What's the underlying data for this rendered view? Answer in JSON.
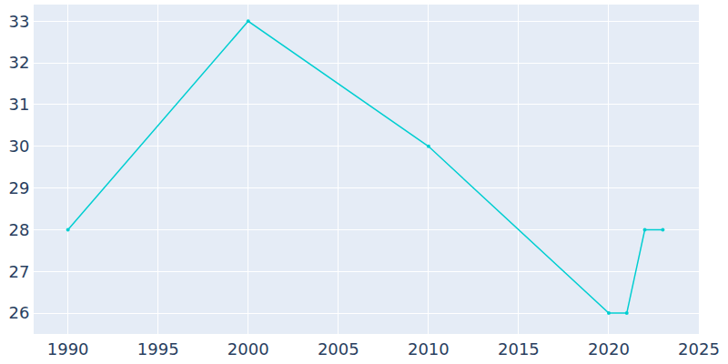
{
  "chart_data": {
    "type": "line",
    "x": [
      1990,
      2000,
      2010,
      2020,
      2021,
      2022,
      2023
    ],
    "values": [
      28,
      33,
      30,
      26,
      26,
      28,
      28
    ],
    "color": "#00CED1",
    "marker": "circle",
    "xlim": [
      1988.1,
      2025
    ],
    "ylim": [
      25.5,
      33.4
    ],
    "xticks": [
      1990,
      1995,
      2000,
      2005,
      2010,
      2015,
      2020,
      2025
    ],
    "yticks": [
      26,
      27,
      28,
      29,
      30,
      31,
      32,
      33
    ],
    "grid": true
  }
}
